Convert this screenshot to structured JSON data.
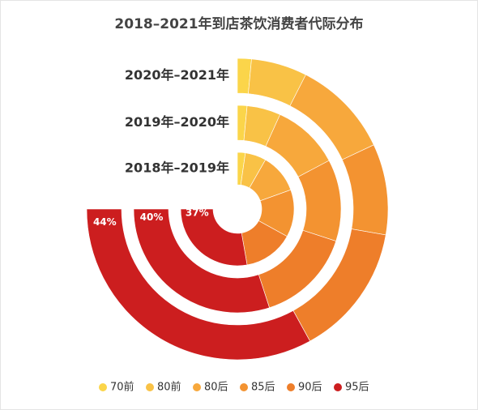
{
  "chart_data": {
    "type": "radial-bar",
    "title": "2018–2021年到店茶饮消费者代际分布",
    "categories": [
      "2018年–2019年",
      "2019年–2020年",
      "2020年–2021年"
    ],
    "xlim": [
      0,
      100
    ],
    "series": [
      {
        "name": "70前",
        "color": "#fbd54a",
        "values": [
          3,
          2,
          2
        ]
      },
      {
        "name": "80前",
        "color": "#f9c246",
        "values": [
          8,
          7,
          8
        ]
      },
      {
        "name": "80后",
        "color": "#f7a83c",
        "values": [
          15,
          14,
          14
        ]
      },
      {
        "name": "85后",
        "color": "#f39331",
        "values": [
          18,
          17,
          13
        ]
      },
      {
        "name": "90后",
        "color": "#ee7e2a",
        "values": [
          19,
          20,
          19
        ]
      },
      {
        "name": "95后",
        "color": "#cc1e1f",
        "values": [
          37,
          40,
          44
        ],
        "value_labels": [
          "37%",
          "40%",
          "44%"
        ]
      }
    ],
    "legend": "bottom"
  }
}
